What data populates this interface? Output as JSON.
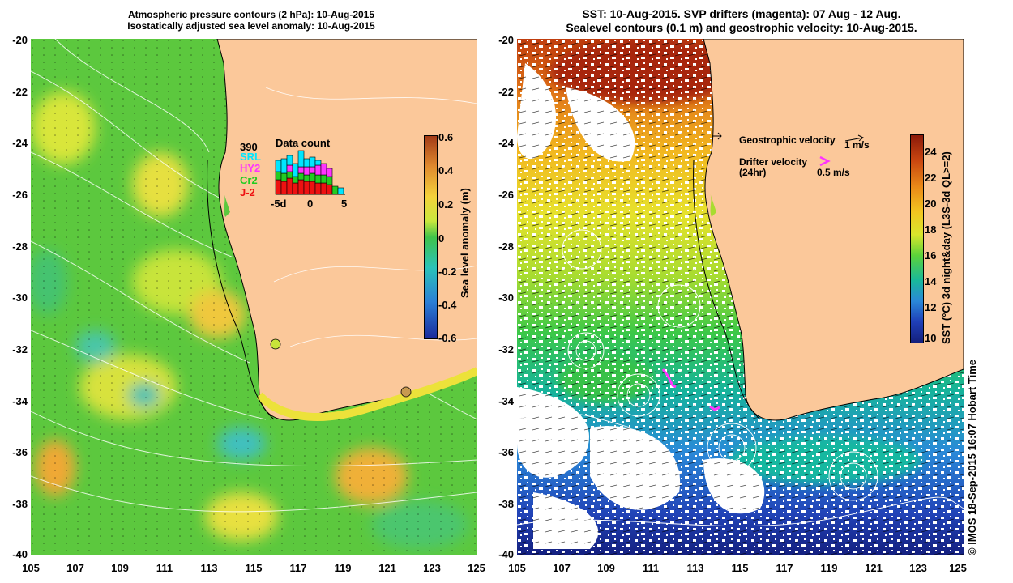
{
  "left_panel": {
    "title_line1": "Atmospheric pressure contours (2 hPa): 10-Aug-2015",
    "title_line2": "Isostatically adjusted sea level anomaly: 10-Aug-2015",
    "colorbar_label": "Sea level anomaly (m)",
    "colorbar_ticks": [
      "0.6",
      "0.4",
      "0.2",
      "0",
      "-0.2",
      "-0.4",
      "-0.6"
    ],
    "colorbar_colors": [
      "#a23a16",
      "#e08a2e",
      "#f4d23a",
      "#c9e83d",
      "#3fc24a",
      "#2bc3b8",
      "#2b7fd6",
      "#1a2a9c"
    ],
    "data_count": {
      "title": "Data count",
      "total": "390",
      "missions": [
        {
          "name": "SRL",
          "color": "#00e6ff"
        },
        {
          "name": "HY2",
          "color": "#ff33ff"
        },
        {
          "name": "Cr2",
          "color": "#22cc22"
        },
        {
          "name": "J-2",
          "color": "#ee1111"
        }
      ],
      "x_ticks": [
        "-5d",
        "0",
        "5"
      ]
    }
  },
  "right_panel": {
    "title_line1": "SST: 10-Aug-2015. SVP drifters (magenta): 07 Aug - 12 Aug.",
    "title_line2": "Sealevel contours (0.1 m) and geostrophic velocity: 10-Aug-2015.",
    "colorbar_label": "SST (°C) 3d night&day (L3S-3d QL>=2)",
    "colorbar_ticks": [
      "24",
      "22",
      "20",
      "18",
      "16",
      "14",
      "12",
      "10"
    ],
    "colorbar_colors": [
      "#8b1a0a",
      "#c84510",
      "#ea8a18",
      "#f2c520",
      "#d9e62c",
      "#5cd23a",
      "#19b89a",
      "#2a88d8",
      "#1f3fb8",
      "#14207c"
    ],
    "legend": {
      "geo_label": "Geostrophic velocity",
      "geo_scale": "1 m/s",
      "drifter_label": "Drifter velocity",
      "drifter_sub": "(24hr)",
      "drifter_scale": "0.5 m/s"
    }
  },
  "axes": {
    "y_ticks": [
      "-20",
      "-22",
      "-24",
      "-26",
      "-28",
      "-30",
      "-32",
      "-34",
      "-36",
      "-38",
      "-40"
    ],
    "x_ticks": [
      "105",
      "107",
      "109",
      "111",
      "113",
      "115",
      "117",
      "119",
      "121",
      "123",
      "125"
    ]
  },
  "credit": "© IMOS 18-Sep-2015 16:07 Hobart Time",
  "colors": {
    "land": "#fbc89a",
    "ocean_green": "#56c93c",
    "drifter": "#ff33ff"
  }
}
